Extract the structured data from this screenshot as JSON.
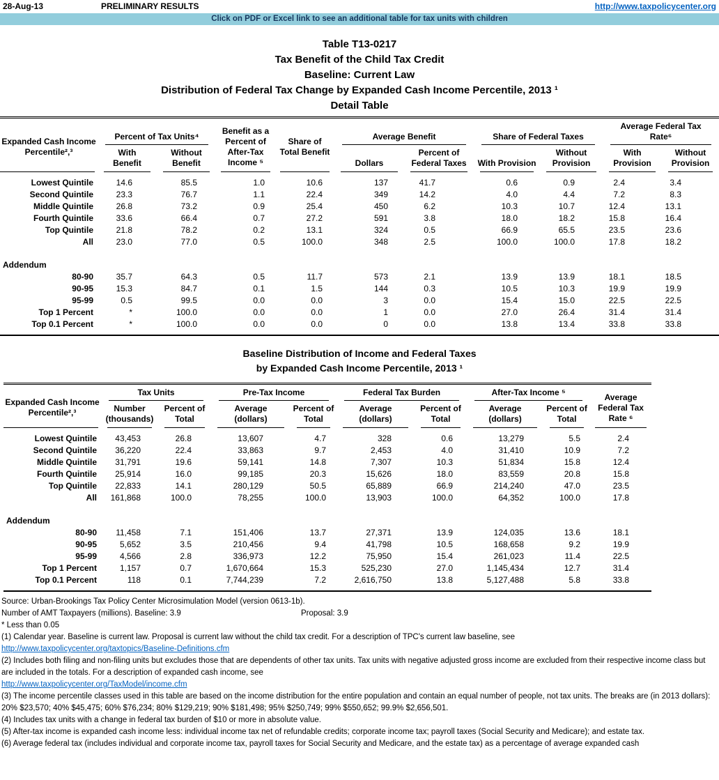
{
  "colors": {
    "banner_bg": "#92CDDC",
    "banner_text": "#17375E",
    "link_blue": "#0563C1"
  },
  "topbar": {
    "date": "28-Aug-13",
    "status": "PRELIMINARY RESULTS",
    "url": "http://www.taxpolicycenter.org"
  },
  "banner": {
    "text": "Click on PDF or Excel link to see an additional table for tax units with children"
  },
  "titles": {
    "t1": "Table T13-0217",
    "t2": "Tax Benefit of the Child Tax Credit",
    "t3": "Baseline: Current Law",
    "t4": "Distribution of Federal Tax Change by Expanded Cash Income Percentile, 2013 ¹",
    "t5": "Detail Table"
  },
  "table1": {
    "header": {
      "col0": "Expanded Cash Income\nPercentile²,³",
      "g1": "Percent of Tax Units⁴",
      "g1a": "With\nBenefit",
      "g1b": "Without\nBenefit",
      "c2": "Benefit as a\nPercent of\nAfter-Tax\nIncome ⁵",
      "c3": "Share of\nTotal Benefit",
      "g2": "Average Benefit",
      "g2a": "Dollars",
      "g2b": "Percent of\nFederal Taxes",
      "g3": "Share of Federal Taxes",
      "g3a": "With Provision",
      "g3b": "Without\nProvision",
      "g4": "Average Federal Tax Rate⁶",
      "g4a": "With\nProvision",
      "g4b": "Without\nProvision"
    },
    "rows": [
      [
        "Lowest Quintile",
        "14.6",
        "85.5",
        "1.0",
        "10.6",
        "137",
        "41.7",
        "0.6",
        "0.9",
        "2.4",
        "3.4"
      ],
      [
        "Second Quintile",
        "23.3",
        "76.7",
        "1.1",
        "22.4",
        "349",
        "14.2",
        "4.0",
        "4.4",
        "7.2",
        "8.3"
      ],
      [
        "Middle Quintile",
        "26.8",
        "73.2",
        "0.9",
        "25.4",
        "450",
        "6.2",
        "10.3",
        "10.7",
        "12.4",
        "13.1"
      ],
      [
        "Fourth Quintile",
        "33.6",
        "66.4",
        "0.7",
        "27.2",
        "591",
        "3.8",
        "18.0",
        "18.2",
        "15.8",
        "16.4"
      ],
      [
        "Top Quintile",
        "21.8",
        "78.2",
        "0.2",
        "13.1",
        "324",
        "0.5",
        "66.9",
        "65.5",
        "23.5",
        "23.6"
      ],
      [
        "All",
        "23.0",
        "77.0",
        "0.5",
        "100.0",
        "348",
        "2.5",
        "100.0",
        "100.0",
        "17.8",
        "18.2"
      ]
    ],
    "addendum_label": "Addendum",
    "addendum_rows": [
      [
        "80-90",
        "35.7",
        "64.3",
        "0.5",
        "11.7",
        "573",
        "2.1",
        "13.9",
        "13.9",
        "18.1",
        "18.5"
      ],
      [
        "90-95",
        "15.3",
        "84.7",
        "0.1",
        "1.5",
        "144",
        "0.3",
        "10.5",
        "10.3",
        "19.9",
        "19.9"
      ],
      [
        "95-99",
        "0.5",
        "99.5",
        "0.0",
        "0.0",
        "3",
        "0.0",
        "15.4",
        "15.0",
        "22.5",
        "22.5"
      ],
      [
        "Top 1 Percent",
        "*",
        "100.0",
        "0.0",
        "0.0",
        "1",
        "0.0",
        "27.0",
        "26.4",
        "31.4",
        "31.4"
      ],
      [
        "Top 0.1 Percent",
        "*",
        "100.0",
        "0.0",
        "0.0",
        "0",
        "0.0",
        "13.8",
        "13.4",
        "33.8",
        "33.8"
      ]
    ]
  },
  "table2": {
    "title1": "Baseline Distribution of Income and Federal Taxes",
    "title2": "by Expanded Cash Income Percentile, 2013 ¹",
    "header": {
      "col0": "Expanded Cash Income\nPercentile²,³",
      "g1": "Tax Units",
      "g1a": "Number\n(thousands)",
      "g1b": "Percent of\nTotal",
      "g2": "Pre-Tax Income",
      "g2a": "Average\n(dollars)",
      "g2b": "Percent of\nTotal",
      "g3": "Federal Tax Burden",
      "g3a": "Average\n(dollars)",
      "g3b": "Percent of\nTotal",
      "g4": "After-Tax Income ⁵",
      "g4a": "Average\n(dollars)",
      "g4b": "Percent of\nTotal",
      "c5": "Average\nFederal Tax\nRate ⁶"
    },
    "rows": [
      [
        "Lowest Quintile",
        "43,453",
        "26.8",
        "13,607",
        "4.7",
        "328",
        "0.6",
        "13,279",
        "5.5",
        "2.4"
      ],
      [
        "Second Quintile",
        "36,220",
        "22.4",
        "33,863",
        "9.7",
        "2,453",
        "4.0",
        "31,410",
        "10.9",
        "7.2"
      ],
      [
        "Middle Quintile",
        "31,791",
        "19.6",
        "59,141",
        "14.8",
        "7,307",
        "10.3",
        "51,834",
        "15.8",
        "12.4"
      ],
      [
        "Fourth Quintile",
        "25,914",
        "16.0",
        "99,185",
        "20.3",
        "15,626",
        "18.0",
        "83,559",
        "20.8",
        "15.8"
      ],
      [
        "Top Quintile",
        "22,833",
        "14.1",
        "280,129",
        "50.5",
        "65,889",
        "66.9",
        "214,240",
        "47.0",
        "23.5"
      ],
      [
        "All",
        "161,868",
        "100.0",
        "78,255",
        "100.0",
        "13,903",
        "100.0",
        "64,352",
        "100.0",
        "17.8"
      ]
    ],
    "addendum_label": "Addendum",
    "addendum_rows": [
      [
        "80-90",
        "11,458",
        "7.1",
        "151,406",
        "13.7",
        "27,371",
        "13.9",
        "124,035",
        "13.6",
        "18.1"
      ],
      [
        "90-95",
        "5,652",
        "3.5",
        "210,456",
        "9.4",
        "41,798",
        "10.5",
        "168,658",
        "9.2",
        "19.9"
      ],
      [
        "95-99",
        "4,566",
        "2.8",
        "336,973",
        "12.2",
        "75,950",
        "15.4",
        "261,023",
        "11.4",
        "22.5"
      ],
      [
        "Top 1 Percent",
        "1,157",
        "0.7",
        "1,670,664",
        "15.3",
        "525,230",
        "27.0",
        "1,145,434",
        "12.7",
        "31.4"
      ],
      [
        "Top 0.1 Percent",
        "118",
        "0.1",
        "7,744,239",
        "7.2",
        "2,616,750",
        "13.8",
        "5,127,488",
        "5.8",
        "33.8"
      ]
    ]
  },
  "footer": {
    "source": "Source: Urban-Brookings Tax Policy Center Microsimulation Model (version 0613-1b).",
    "amt_label": "Number of AMT Taxpayers (millions). Baseline: 3.9",
    "amt_proposal": "Proposal: 3.9",
    "star_note": "* Less than 0.05",
    "note1": "(1) Calendar year. Baseline is current law. Proposal is current law without the child tax credit. For a description of TPC's current law baseline, see",
    "link1": "http://www.taxpolicycenter.org/taxtopics/Baseline-Definitions.cfm",
    "note2": "(2) Includes both filing and non-filing units but excludes those that are dependents of other tax units. Tax units with negative adjusted gross income are excluded from their respective income class but are included in the totals. For a description of expanded cash income, see",
    "link2": "http://www.taxpolicycenter.org/TaxModel/income.cfm",
    "note3": "(3) The income percentile classes used in this table are based on the income distribution for the entire population and contain an equal number of people, not tax units. The breaks are (in 2013 dollars): 20% $23,570; 40% $45,475; 60% $76,234; 80% $129,219; 90% $181,498; 95% $250,749; 99% $550,652; 99.9% $2,656,501.",
    "note4": "(4) Includes tax units with a change in federal tax burden of $10 or more in absolute value.",
    "note5": "(5) After-tax income is expanded cash income less: individual income tax net of refundable credits; corporate income tax; payroll taxes (Social Security and Medicare); and estate tax.",
    "note6": "(6) Average federal tax (includes individual and corporate income tax, payroll taxes for Social Security and Medicare, and the estate tax) as a percentage of average expanded cash"
  }
}
